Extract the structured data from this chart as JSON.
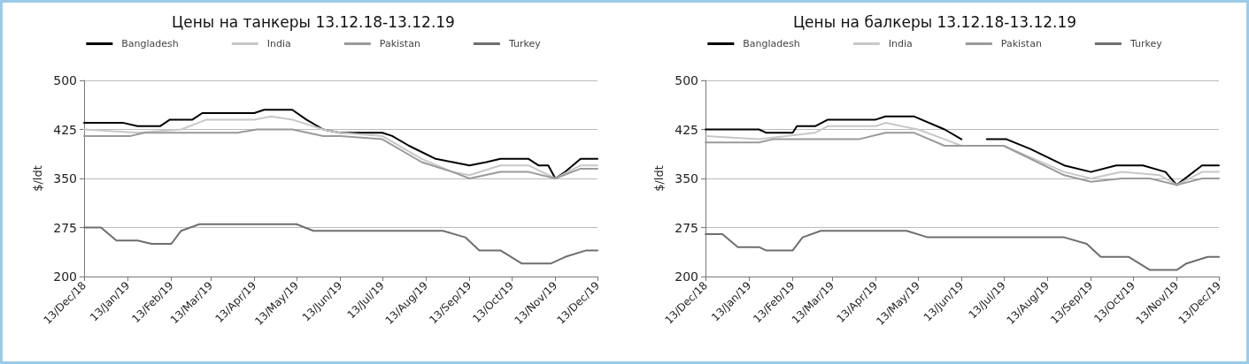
{
  "chart_data": [
    {
      "type": "line",
      "title": "Цены на танкеры 13.12.18-13.12.19",
      "ylabel": "$/ldt",
      "legend": "top",
      "grid": "y",
      "marker": "none",
      "xlim": [
        "2018-12-13",
        "2019-12-13"
      ],
      "ylim": [
        200,
        500
      ],
      "yticks": [
        200,
        275,
        350,
        425,
        500
      ],
      "xticks": [
        {
          "value": "2018-12-13",
          "label": "13/Dec/18"
        },
        {
          "value": "2019-01-13",
          "label": "13/Jan/19"
        },
        {
          "value": "2019-02-13",
          "label": "13/Feb/19"
        },
        {
          "value": "2019-03-13",
          "label": "13/Mar/19"
        },
        {
          "value": "2019-04-13",
          "label": "13/Apr/19"
        },
        {
          "value": "2019-05-13",
          "label": "13/May/19"
        },
        {
          "value": "2019-06-13",
          "label": "13/Jun/19"
        },
        {
          "value": "2019-07-13",
          "label": "13/Jul/19"
        },
        {
          "value": "2019-08-13",
          "label": "13/Aug/19"
        },
        {
          "value": "2019-09-13",
          "label": "13/Sep/19"
        },
        {
          "value": "2019-10-13",
          "label": "13/Oct/19"
        },
        {
          "value": "2019-11-13",
          "label": "13/Nov/19"
        },
        {
          "value": "2019-12-13",
          "label": "13/Dec/19"
        }
      ],
      "series": [
        {
          "name": "Bangladesh",
          "color": "#000000",
          "x": [
            "2018-12-13",
            "2019-01-10",
            "2019-01-20",
            "2019-02-05",
            "2019-02-12",
            "2019-02-28",
            "2019-03-07",
            "2019-04-13",
            "2019-04-20",
            "2019-05-10",
            "2019-05-20",
            "2019-06-01",
            "2019-06-13",
            "2019-07-13",
            "2019-07-20",
            "2019-08-01",
            "2019-08-20",
            "2019-09-01",
            "2019-09-13",
            "2019-09-25",
            "2019-10-05",
            "2019-10-25",
            "2019-11-01",
            "2019-11-08",
            "2019-11-13",
            "2019-11-20",
            "2019-12-01",
            "2019-12-13"
          ],
          "values": [
            435,
            435,
            430,
            430,
            440,
            440,
            450,
            450,
            455,
            455,
            440,
            425,
            420,
            420,
            415,
            400,
            380,
            375,
            370,
            375,
            380,
            380,
            370,
            370,
            350,
            360,
            380,
            380
          ]
        },
        {
          "name": "India",
          "color": "#c8c8c8",
          "x": [
            "2018-12-13",
            "2019-01-20",
            "2019-02-20",
            "2019-03-10",
            "2019-04-13",
            "2019-04-25",
            "2019-05-10",
            "2019-06-01",
            "2019-06-13",
            "2019-07-13",
            "2019-08-10",
            "2019-09-01",
            "2019-09-13",
            "2019-10-05",
            "2019-10-25",
            "2019-11-13",
            "2019-12-01",
            "2019-12-13"
          ],
          "values": [
            425,
            420,
            425,
            440,
            440,
            445,
            440,
            425,
            420,
            415,
            380,
            360,
            355,
            370,
            370,
            350,
            370,
            370
          ]
        },
        {
          "name": "Pakistan",
          "color": "#9a9a9a",
          "x": [
            "2018-12-13",
            "2019-01-15",
            "2019-01-25",
            "2019-04-01",
            "2019-04-15",
            "2019-05-10",
            "2019-06-01",
            "2019-06-13",
            "2019-07-13",
            "2019-08-10",
            "2019-09-01",
            "2019-09-13",
            "2019-10-05",
            "2019-10-25",
            "2019-11-13",
            "2019-12-01",
            "2019-12-13"
          ],
          "values": [
            415,
            415,
            420,
            420,
            425,
            425,
            415,
            415,
            410,
            375,
            360,
            350,
            360,
            360,
            350,
            365,
            365
          ]
        },
        {
          "name": "Turkey",
          "color": "#6e6e6e",
          "x": [
            "2018-12-13",
            "2018-12-25",
            "2019-01-05",
            "2019-01-20",
            "2019-01-30",
            "2019-02-13",
            "2019-02-20",
            "2019-03-05",
            "2019-05-13",
            "2019-05-25",
            "2019-08-25",
            "2019-09-10",
            "2019-09-20",
            "2019-10-05",
            "2019-10-20",
            "2019-11-10",
            "2019-11-20",
            "2019-12-05",
            "2019-12-13"
          ],
          "values": [
            275,
            275,
            255,
            255,
            250,
            250,
            270,
            280,
            280,
            270,
            270,
            260,
            240,
            240,
            220,
            220,
            230,
            240,
            240
          ]
        }
      ]
    },
    {
      "type": "line",
      "title": "Цены на балкеры 13.12.18-13.12.19",
      "ylabel": "$/ldt",
      "legend": "top",
      "grid": "y",
      "marker": "none",
      "xlim": [
        "2018-12-13",
        "2019-12-13"
      ],
      "ylim": [
        200,
        500
      ],
      "yticks": [
        200,
        275,
        350,
        425,
        500
      ],
      "xticks": [
        {
          "value": "2018-12-13",
          "label": "13/Dec/18"
        },
        {
          "value": "2019-01-13",
          "label": "13/Jan/19"
        },
        {
          "value": "2019-02-13",
          "label": "13/Feb/19"
        },
        {
          "value": "2019-03-13",
          "label": "13/Mar/19"
        },
        {
          "value": "2019-04-13",
          "label": "13/Apr/19"
        },
        {
          "value": "2019-05-13",
          "label": "13/May/19"
        },
        {
          "value": "2019-06-13",
          "label": "13/Jun/19"
        },
        {
          "value": "2019-07-13",
          "label": "13/Jul/19"
        },
        {
          "value": "2019-08-13",
          "label": "13/Aug/19"
        },
        {
          "value": "2019-09-13",
          "label": "13/Sep/19"
        },
        {
          "value": "2019-10-13",
          "label": "13/Oct/19"
        },
        {
          "value": "2019-11-13",
          "label": "13/Nov/19"
        },
        {
          "value": "2019-12-13",
          "label": "13/Dec/19"
        }
      ],
      "series": [
        {
          "name": "Bangladesh",
          "color": "#000000",
          "x": [
            "2018-12-13",
            "2019-01-20",
            "2019-01-25",
            "2019-02-13",
            "2019-02-16",
            "2019-03-01",
            "2019-03-10",
            "2019-04-13",
            "2019-04-20",
            "2019-05-10",
            "2019-06-01",
            "2019-06-13",
            "2019-06-20",
            "2019-07-01",
            "2019-07-15",
            "2019-08-01",
            "2019-08-25",
            "2019-09-13",
            "2019-10-01",
            "2019-10-20",
            "2019-11-05",
            "2019-11-13",
            "2019-12-01",
            "2019-12-13"
          ],
          "values": [
            425,
            425,
            420,
            420,
            430,
            430,
            440,
            440,
            445,
            445,
            425,
            410,
            null,
            410,
            410,
            395,
            370,
            360,
            370,
            370,
            360,
            340,
            370,
            370
          ]
        },
        {
          "name": "India",
          "color": "#c8c8c8",
          "x": [
            "2018-12-13",
            "2019-01-20",
            "2019-03-01",
            "2019-03-10",
            "2019-04-13",
            "2019-04-20",
            "2019-05-13",
            "2019-06-01",
            "2019-06-13",
            "2019-07-13",
            "2019-08-25",
            "2019-09-13",
            "2019-10-05",
            "2019-11-01",
            "2019-11-13",
            "2019-12-01",
            "2019-12-13"
          ],
          "values": [
            415,
            410,
            420,
            430,
            430,
            435,
            425,
            410,
            400,
            400,
            360,
            350,
            360,
            355,
            340,
            360,
            360
          ]
        },
        {
          "name": "Pakistan",
          "color": "#9a9a9a",
          "x": [
            "2018-12-13",
            "2019-01-20",
            "2019-01-30",
            "2019-04-01",
            "2019-04-20",
            "2019-05-10",
            "2019-06-01",
            "2019-07-13",
            "2019-08-25",
            "2019-09-13",
            "2019-10-05",
            "2019-10-25",
            "2019-11-13",
            "2019-12-01",
            "2019-12-13"
          ],
          "values": [
            405,
            405,
            410,
            410,
            420,
            420,
            400,
            400,
            355,
            345,
            350,
            350,
            340,
            350,
            350
          ]
        },
        {
          "name": "Turkey",
          "color": "#6e6e6e",
          "x": [
            "2018-12-13",
            "2018-12-25",
            "2019-01-05",
            "2019-01-20",
            "2019-01-25",
            "2019-02-13",
            "2019-02-20",
            "2019-03-05",
            "2019-05-05",
            "2019-05-20",
            "2019-08-25",
            "2019-09-10",
            "2019-09-20",
            "2019-10-10",
            "2019-10-25",
            "2019-11-13",
            "2019-11-20",
            "2019-12-05",
            "2019-12-13"
          ],
          "values": [
            265,
            265,
            245,
            245,
            240,
            240,
            260,
            270,
            270,
            260,
            260,
            250,
            230,
            230,
            210,
            210,
            220,
            230,
            230
          ]
        }
      ]
    }
  ]
}
